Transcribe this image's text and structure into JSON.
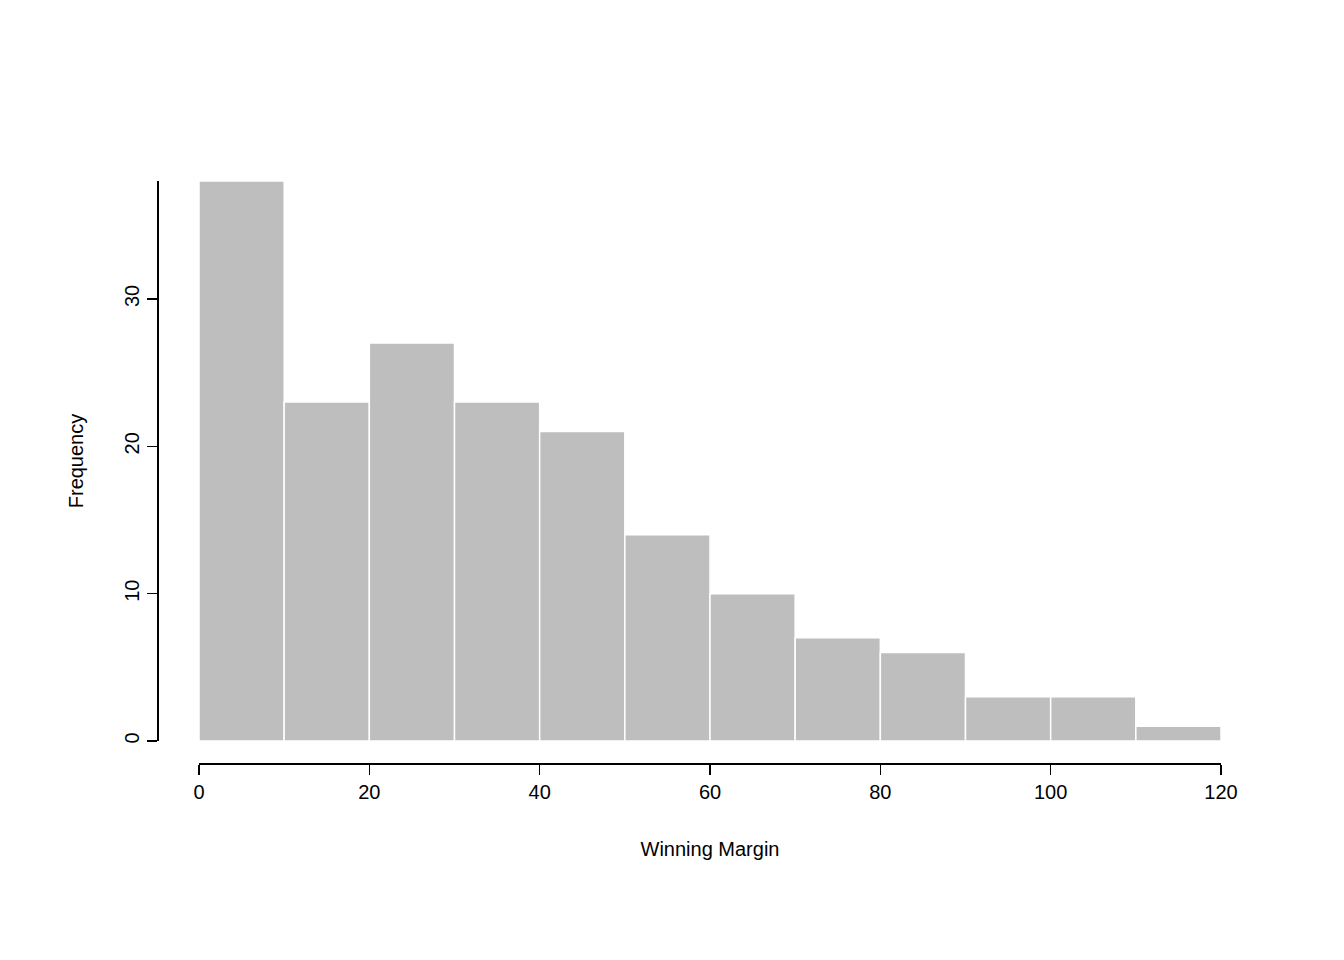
{
  "chart_data": {
    "type": "histogram",
    "xlabel": "Winning Margin",
    "ylabel": "Frequency",
    "bins": [
      0,
      10,
      20,
      30,
      40,
      50,
      60,
      70,
      80,
      90,
      100,
      110,
      120
    ],
    "values": [
      38,
      23,
      27,
      23,
      21,
      14,
      10,
      7,
      6,
      3,
      3,
      1
    ],
    "color": "#bebebe",
    "xlim": [
      0,
      120
    ],
    "ylim": [
      0,
      38
    ],
    "xticks": [
      0,
      20,
      40,
      60,
      80,
      100,
      120
    ],
    "yticks": [
      0,
      10,
      20,
      30
    ],
    "grid": false
  }
}
